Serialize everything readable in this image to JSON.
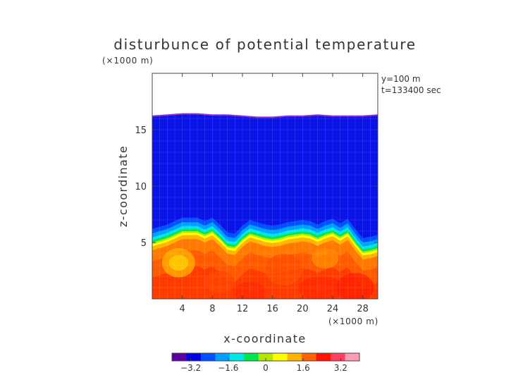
{
  "chart_data": {
    "type": "heatmap",
    "title": "disturbunce of potential temperature",
    "xlabel": "x-coordinate",
    "ylabel": "z-coordinate",
    "x_unit": "(×1000 m)",
    "y_unit": "(×1000 m)",
    "xlim": [
      0,
      30
    ],
    "ylim": [
      0,
      20
    ],
    "x_ticks": [
      4,
      8,
      12,
      16,
      20,
      24,
      28
    ],
    "y_ticks": [
      5,
      10,
      15
    ],
    "annotations": [
      "y=100 m",
      "t=133400 sec"
    ],
    "colorbar": {
      "ticks": [
        -3.2,
        -1.6,
        0,
        1.6,
        3.2
      ],
      "tick_labels": [
        "−3.2",
        "−1.6",
        "0",
        "1.6",
        "3.2"
      ],
      "range": [
        -4.0,
        4.0
      ],
      "colors": [
        "#5a00a0",
        "#0000e6",
        "#0050ff",
        "#00a0ff",
        "#00e6e6",
        "#00e650",
        "#b4e600",
        "#ffff00",
        "#ffb400",
        "#ff6400",
        "#ff1400",
        "#ff4060",
        "#ff9cb4"
      ]
    },
    "field": {
      "top_of_data_z": [
        16.2,
        16.3,
        16.4,
        16.4,
        16.3,
        16.3,
        16.2,
        16.1,
        16.1,
        16.2,
        16.2,
        16.3,
        16.2,
        16.2,
        16.2,
        16.3
      ],
      "interface_x": [
        0,
        2,
        4,
        6,
        7,
        8,
        9,
        10,
        11,
        12,
        13,
        14,
        15,
        16,
        17,
        18,
        19,
        20,
        21,
        22,
        23,
        24,
        25,
        26,
        27,
        28,
        29,
        30
      ],
      "interface_z": [
        4.9,
        5.3,
        5.9,
        5.9,
        5.6,
        5.9,
        5.3,
        4.6,
        4.5,
        5.2,
        5.7,
        5.5,
        5.3,
        5.2,
        5.3,
        5.5,
        5.6,
        5.7,
        5.6,
        5.3,
        5.6,
        5.8,
        5.4,
        5.8,
        4.9,
        4.1,
        4.2,
        4.4
      ],
      "upper_value": -2.4,
      "lower_value": 2.8
    }
  }
}
